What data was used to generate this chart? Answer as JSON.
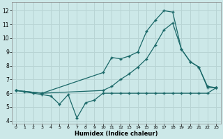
{
  "xlabel": "Humidex (Indice chaleur)",
  "background_color": "#cce8e8",
  "grid_color": "#b8d4d4",
  "line_color": "#1a6868",
  "xlim": [
    -0.5,
    23.5
  ],
  "ylim": [
    3.8,
    12.6
  ],
  "yticks": [
    4,
    5,
    6,
    7,
    8,
    9,
    10,
    11,
    12
  ],
  "xticks": [
    0,
    1,
    2,
    3,
    4,
    5,
    6,
    7,
    8,
    9,
    10,
    11,
    12,
    13,
    14,
    15,
    16,
    17,
    18,
    19,
    20,
    21,
    22,
    23
  ],
  "line1_x": [
    0,
    1,
    2,
    3,
    4,
    5,
    6,
    7,
    8,
    9,
    10,
    11,
    12,
    13,
    14,
    15,
    16,
    17,
    18,
    19,
    20,
    21,
    22,
    23
  ],
  "line1_y": [
    6.2,
    6.1,
    6.0,
    5.9,
    5.8,
    5.2,
    5.9,
    4.2,
    5.3,
    5.5,
    6.0,
    6.0,
    6.0,
    6.0,
    6.0,
    6.0,
    6.0,
    6.0,
    6.0,
    6.0,
    6.0,
    6.0,
    6.0,
    6.4
  ],
  "line2_x": [
    0,
    3,
    10,
    11,
    12,
    13,
    14,
    15,
    16,
    17,
    18,
    19,
    20,
    21,
    22,
    23
  ],
  "line2_y": [
    6.2,
    6.0,
    7.5,
    8.6,
    8.5,
    8.7,
    9.0,
    10.5,
    11.3,
    12.0,
    11.9,
    9.2,
    8.3,
    7.9,
    6.5,
    6.4
  ],
  "line3_x": [
    0,
    3,
    10,
    11,
    12,
    13,
    14,
    15,
    16,
    17,
    18,
    19,
    20,
    21,
    22,
    23
  ],
  "line3_y": [
    6.2,
    6.0,
    6.2,
    6.5,
    7.0,
    7.4,
    7.9,
    8.5,
    9.5,
    10.6,
    11.1,
    9.2,
    8.3,
    7.9,
    6.4,
    6.4
  ]
}
